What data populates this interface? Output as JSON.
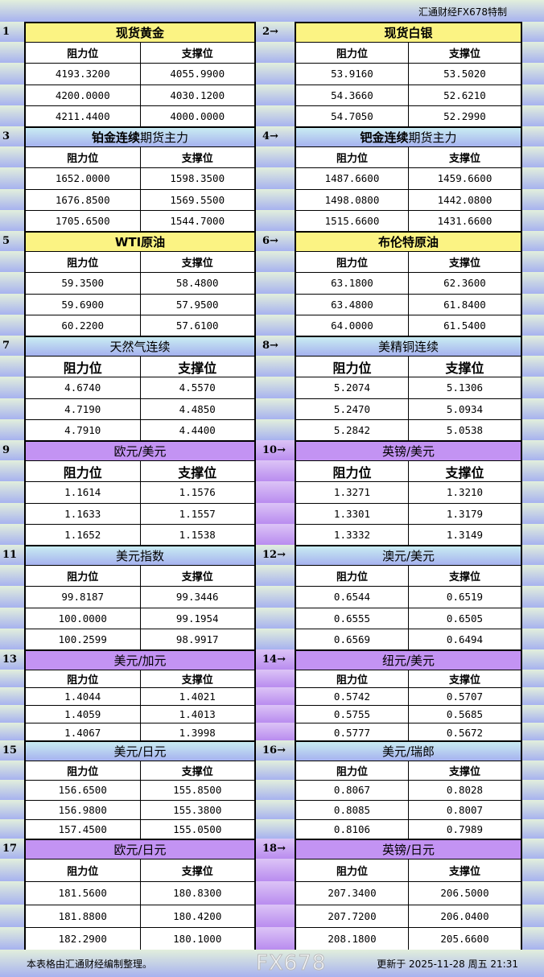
{
  "header": {
    "brand": "汇通财经FX678特制"
  },
  "col_labels": {
    "resistance": "阻力位",
    "support": "支撑位"
  },
  "colors": {
    "yellow": "#fbf383",
    "blue": "#a6b2ef",
    "purple": "#c393f3"
  },
  "sections": [
    {
      "style": "yellow",
      "left": {
        "num": "1",
        "title_bold": "现货黄金",
        "title_rest": "",
        "rows": [
          [
            "4193.3200",
            "4055.9900"
          ],
          [
            "4200.0000",
            "4030.1200"
          ],
          [
            "4211.4400",
            "4000.0000"
          ]
        ]
      },
      "right": {
        "num": "2→",
        "title_bold": "现货白银",
        "title_rest": "",
        "rows": [
          [
            "53.9160",
            "53.5020"
          ],
          [
            "54.3660",
            "52.6210"
          ],
          [
            "54.7050",
            "52.2990"
          ]
        ]
      }
    },
    {
      "style": "blue",
      "left": {
        "num": "3",
        "title_bold": "铂金连续",
        "title_rest": "期货主力",
        "rows": [
          [
            "1652.0000",
            "1598.3500"
          ],
          [
            "1676.8500",
            "1569.5500"
          ],
          [
            "1705.6500",
            "1544.7000"
          ]
        ]
      },
      "right": {
        "num": "4→",
        "title_bold": "钯金连续",
        "title_rest": "期货主力",
        "rows": [
          [
            "1487.6600",
            "1459.6600"
          ],
          [
            "1498.0800",
            "1442.0800"
          ],
          [
            "1515.6600",
            "1431.6600"
          ]
        ]
      }
    },
    {
      "style": "yellow",
      "left": {
        "num": "5",
        "title_bold": "WTI原油",
        "title_rest": "",
        "rows": [
          [
            "59.3500",
            "58.4800"
          ],
          [
            "59.6900",
            "57.9500"
          ],
          [
            "60.2200",
            "57.6100"
          ]
        ]
      },
      "right": {
        "num": "6→",
        "title_bold": "布伦特原油",
        "title_rest": "",
        "rows": [
          [
            "63.1800",
            "62.3600"
          ],
          [
            "63.4800",
            "61.8400"
          ],
          [
            "64.0000",
            "61.5400"
          ]
        ]
      }
    },
    {
      "style": "blue",
      "big": true,
      "left": {
        "num": "7",
        "title_bold": "",
        "title_rest": "天然气连续",
        "rows": [
          [
            "4.6740",
            "4.5570"
          ],
          [
            "4.7190",
            "4.4850"
          ],
          [
            "4.7910",
            "4.4400"
          ]
        ]
      },
      "right": {
        "num": "8→",
        "title_bold": "",
        "title_rest": "美精铜连续",
        "rows": [
          [
            "5.2074",
            "5.1306"
          ],
          [
            "5.2470",
            "5.0934"
          ],
          [
            "5.2842",
            "5.0538"
          ]
        ]
      }
    },
    {
      "style": "purple",
      "big": true,
      "left": {
        "num": "9",
        "title_bold": "",
        "title_rest": "欧元/美元",
        "rows": [
          [
            "1.1614",
            "1.1576"
          ],
          [
            "1.1633",
            "1.1557"
          ],
          [
            "1.1652",
            "1.1538"
          ]
        ]
      },
      "right": {
        "num": "10→",
        "title_bold": "",
        "title_rest": "英镑/美元",
        "rows": [
          [
            "1.3271",
            "1.3210"
          ],
          [
            "1.3301",
            "1.3179"
          ],
          [
            "1.3332",
            "1.3149"
          ]
        ]
      }
    },
    {
      "style": "blue",
      "left": {
        "num": "11",
        "title_bold": "",
        "title_rest": "美元指数",
        "rows": [
          [
            "99.8187",
            "99.3446"
          ],
          [
            "100.0000",
            "99.1954"
          ],
          [
            "100.2599",
            "98.9917"
          ]
        ]
      },
      "right": {
        "num": "12→",
        "title_bold": "",
        "title_rest": "澳元/美元",
        "rows": [
          [
            "0.6544",
            "0.6519"
          ],
          [
            "0.6555",
            "0.6505"
          ],
          [
            "0.6569",
            "0.6494"
          ]
        ]
      }
    },
    {
      "style": "purple",
      "left": {
        "num": "13",
        "title_bold": "",
        "title_rest": "美元/加元",
        "rows": [
          [
            "1.4044",
            "1.4021"
          ],
          [
            "1.4059",
            "1.4013"
          ],
          [
            "1.4067",
            "1.3998"
          ]
        ]
      },
      "right": {
        "num": "14→",
        "title_bold": "",
        "title_rest": "纽元/美元",
        "rows": [
          [
            "0.5742",
            "0.5707"
          ],
          [
            "0.5755",
            "0.5685"
          ],
          [
            "0.5777",
            "0.5672"
          ]
        ]
      }
    },
    {
      "style": "blue",
      "left": {
        "num": "15",
        "title_bold": "",
        "title_rest": "美元/日元",
        "rows": [
          [
            "156.6500",
            "155.8500"
          ],
          [
            "156.9800",
            "155.3800"
          ],
          [
            "157.4500",
            "155.0500"
          ]
        ]
      },
      "right": {
        "num": "16→",
        "title_bold": "",
        "title_rest": "美元/瑞郎",
        "rows": [
          [
            "0.8067",
            "0.8028"
          ],
          [
            "0.8085",
            "0.8007"
          ],
          [
            "0.8106",
            "0.7989"
          ]
        ]
      }
    },
    {
      "style": "purple",
      "left": {
        "num": "17",
        "title_bold": "",
        "title_rest": "欧元/日元",
        "rows": [
          [
            "181.5600",
            "180.8300"
          ],
          [
            "181.8800",
            "180.4200"
          ],
          [
            "182.2900",
            "180.1000"
          ]
        ]
      },
      "right": {
        "num": "18→",
        "title_bold": "",
        "title_rest": "英镑/日元",
        "rows": [
          [
            "207.3400",
            "206.5000"
          ],
          [
            "207.7200",
            "206.0400"
          ],
          [
            "208.1800",
            "205.6600"
          ]
        ]
      }
    }
  ],
  "footer": {
    "note": "本表格由汇通财经编制整理。",
    "updated": "更新于 2025-11-28 周五 21:31"
  },
  "watermark": "FX678"
}
